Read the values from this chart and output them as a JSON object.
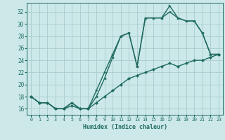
{
  "xlabel": "Humidex (Indice chaleur)",
  "bg_color": "#cce8e8",
  "grid_color": "#aacccc",
  "line_color": "#1e6b5e",
  "x": [
    0,
    1,
    2,
    3,
    4,
    5,
    6,
    7,
    8,
    9,
    10,
    11,
    12,
    13,
    14,
    15,
    16,
    17,
    18,
    19,
    20,
    21,
    22,
    23
  ],
  "line1": [
    18,
    17,
    17,
    16,
    16,
    17,
    16,
    16,
    19,
    22,
    25,
    28,
    28.5,
    23,
    31,
    31,
    31,
    33,
    31,
    30.5,
    30.5,
    28.5,
    25,
    25
  ],
  "line2": [
    18,
    17,
    17,
    16,
    16,
    17,
    16,
    16,
    18,
    21,
    24.5,
    28,
    28.5,
    23,
    31,
    31,
    31,
    32,
    31,
    30.5,
    30.5,
    28.5,
    25,
    25
  ],
  "line3": [
    18,
    17,
    17,
    16,
    16,
    16.5,
    16,
    16,
    17,
    18,
    19,
    20,
    21,
    21.5,
    22,
    22.5,
    23,
    23.5,
    23,
    23.5,
    24,
    24,
    24.5,
    25
  ],
  "ylim": [
    15,
    33.5
  ],
  "xlim": [
    -0.5,
    23.5
  ],
  "yticks": [
    16,
    18,
    20,
    22,
    24,
    26,
    28,
    30,
    32
  ],
  "xticks": [
    0,
    1,
    2,
    3,
    4,
    5,
    6,
    7,
    8,
    9,
    10,
    11,
    12,
    13,
    14,
    15,
    16,
    17,
    18,
    19,
    20,
    21,
    22,
    23
  ]
}
